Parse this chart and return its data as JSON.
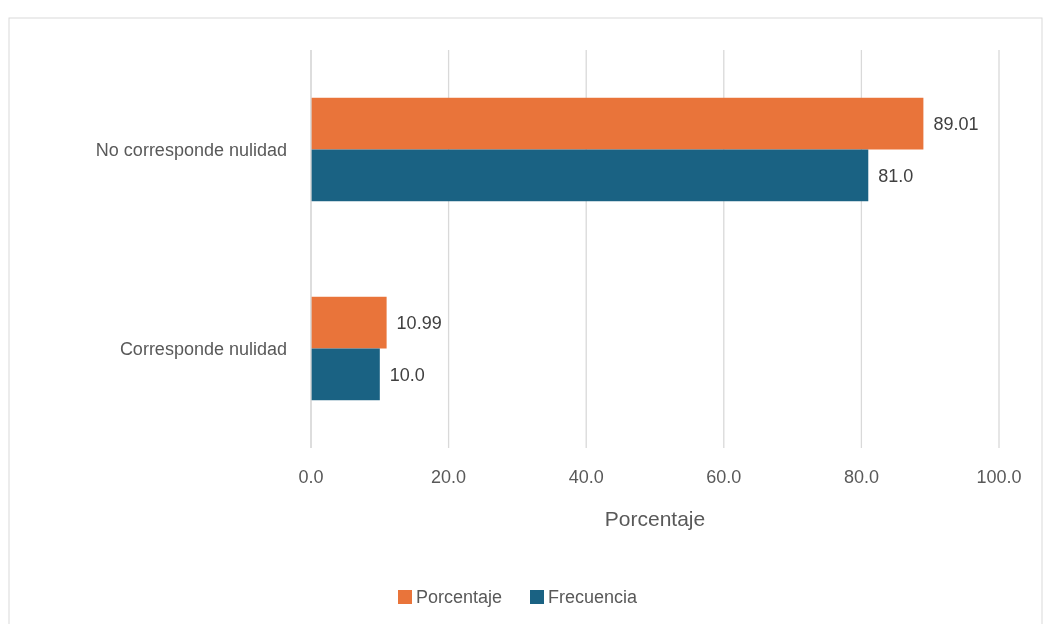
{
  "chart_data": {
    "type": "bar",
    "orientation": "horizontal",
    "categories": [
      "No corresponde nulidad",
      "Corresponde nulidad"
    ],
    "series": [
      {
        "name": "Porcentaje",
        "color": "#e9743a",
        "values": [
          89.01,
          10.99
        ],
        "value_labels": [
          "89.01",
          "10.99"
        ]
      },
      {
        "name": "Frecuencia",
        "color": "#1a6283",
        "values": [
          81.0,
          10.0
        ],
        "value_labels": [
          "81.0",
          "10.0"
        ]
      }
    ],
    "xlim": [
      0,
      100
    ],
    "xticks": [
      {
        "value": 0,
        "label": "0.0"
      },
      {
        "value": 20,
        "label": "20.0"
      },
      {
        "value": 40,
        "label": "40.0"
      },
      {
        "value": 60,
        "label": "60.0"
      },
      {
        "value": 80,
        "label": "80.0"
      },
      {
        "value": 100,
        "label": "100.0"
      }
    ],
    "xlabel": "Porcentaje",
    "grid": "x",
    "legend": "bottom"
  }
}
